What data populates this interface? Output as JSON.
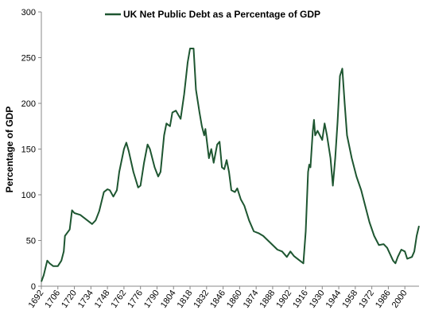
{
  "chart_data": {
    "type": "line",
    "y_label": "Percentage of GDP",
    "x": [
      1692,
      1694,
      1697,
      1699,
      1702,
      1706,
      1709,
      1711,
      1712,
      1716,
      1718,
      1720,
      1725,
      1730,
      1735,
      1738,
      1741,
      1745,
      1748,
      1750,
      1753,
      1756,
      1758,
      1762,
      1764,
      1766,
      1770,
      1774,
      1776,
      1779,
      1782,
      1784,
      1788,
      1791,
      1793,
      1796,
      1798,
      1801,
      1803,
      1806,
      1810,
      1813,
      1816,
      1818,
      1821,
      1823,
      1826,
      1828,
      1830,
      1831,
      1834,
      1836,
      1838,
      1841,
      1843,
      1845,
      1847,
      1849,
      1851,
      1853,
      1856,
      1858,
      1861,
      1864,
      1868,
      1872,
      1876,
      1880,
      1884,
      1888,
      1892,
      1896,
      1900,
      1903,
      1906,
      1910,
      1914,
      1916,
      1918,
      1919,
      1920,
      1922,
      1923,
      1924,
      1926,
      1928,
      1930,
      1932,
      1934,
      1937,
      1939,
      1941,
      1943,
      1945,
      1947,
      1949,
      1951,
      1955,
      1959,
      1963,
      1967,
      1970,
      1974,
      1978,
      1982,
      1985,
      1990,
      1992,
      1994,
      1997,
      2000,
      2002,
      2006,
      2008,
      2010,
      2012
    ],
    "series": [
      {
        "name": "UK Net Public Debt as a Percentage of GDP",
        "color": "#1e5631",
        "values": [
          5,
          12,
          28,
          25,
          22,
          22,
          28,
          38,
          55,
          62,
          83,
          80,
          78,
          73,
          68,
          72,
          82,
          103,
          106,
          105,
          98,
          105,
          125,
          150,
          157,
          148,
          125,
          108,
          110,
          135,
          155,
          150,
          130,
          120,
          125,
          165,
          178,
          175,
          190,
          192,
          183,
          210,
          245,
          260,
          260,
          215,
          190,
          175,
          165,
          172,
          140,
          150,
          135,
          155,
          158,
          130,
          128,
          138,
          125,
          105,
          103,
          107,
          95,
          88,
          72,
          60,
          58,
          55,
          50,
          45,
          40,
          38,
          32,
          38,
          33,
          29,
          25,
          60,
          125,
          133,
          130,
          170,
          182,
          165,
          170,
          165,
          160,
          178,
          165,
          140,
          110,
          140,
          180,
          230,
          238,
          200,
          165,
          140,
          120,
          105,
          85,
          70,
          55,
          45,
          46,
          42,
          28,
          25,
          32,
          40,
          38,
          30,
          32,
          38,
          55,
          66
        ]
      }
    ],
    "xlim": [
      1692,
      2012
    ],
    "xticks": [
      1692,
      1706,
      1720,
      1734,
      1748,
      1762,
      1776,
      1790,
      1804,
      1818,
      1832,
      1846,
      1860,
      1874,
      1888,
      1902,
      1916,
      1930,
      1944,
      1958,
      1972,
      1986,
      2000
    ],
    "ylim": [
      0,
      300
    ],
    "yticks": [
      0,
      50,
      100,
      150,
      200,
      250,
      300
    ],
    "grid": false,
    "legend": "top"
  }
}
